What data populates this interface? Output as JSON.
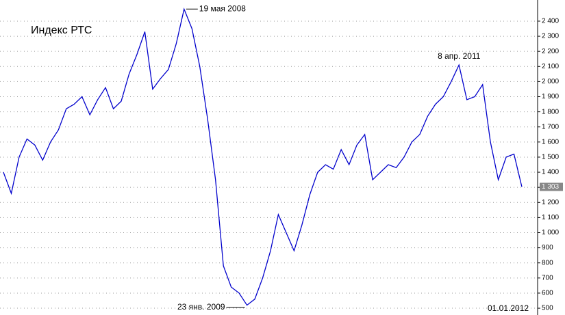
{
  "chart_data": {
    "type": "line",
    "title": "Индекс РТС",
    "series": [
      {
        "name": "РТС",
        "color": "#0000cc",
        "values": [
          1400,
          1260,
          1500,
          1620,
          1580,
          1480,
          1600,
          1680,
          1820,
          1850,
          1900,
          1780,
          1880,
          1960,
          1820,
          1870,
          2050,
          2180,
          2330,
          1950,
          2020,
          2080,
          2250,
          2480,
          2350,
          2100,
          1750,
          1350,
          780,
          640,
          600,
          520,
          560,
          700,
          880,
          1120,
          1000,
          880,
          1050,
          1250,
          1400,
          1450,
          1420,
          1550,
          1450,
          1580,
          1650,
          1350,
          1400,
          1450,
          1430,
          1500,
          1600,
          1650,
          1770,
          1850,
          1900,
          2000,
          2110,
          1880,
          1900,
          1980,
          1600,
          1350,
          1500,
          1520,
          1303
        ],
        "value_labels": [
          null,
          null,
          null,
          null,
          null,
          null,
          null,
          null,
          null,
          null,
          null,
          null,
          null,
          null,
          null,
          null,
          null,
          null,
          null,
          null,
          null,
          null,
          null,
          null,
          null,
          null,
          null,
          null,
          null,
          null,
          null,
          null,
          null,
          null,
          null,
          null,
          null,
          null,
          null,
          null,
          null,
          null,
          null,
          null,
          null,
          null,
          null,
          null,
          null,
          null,
          null,
          null,
          null,
          null,
          null,
          null,
          null,
          null,
          null,
          null,
          null,
          null,
          null,
          null,
          null,
          null,
          "1 303"
        ]
      }
    ],
    "annotations": [
      {
        "text": "19 мая 2008",
        "index": 23
      },
      {
        "text": "23 янв. 2009",
        "index": 31
      },
      {
        "text": "8 апр. 2011",
        "index": 58
      }
    ],
    "end_label": "01.01.2012",
    "ylim": [
      455,
      2540
    ],
    "yticks": [
      {
        "value": 500,
        "label": "500"
      },
      {
        "value": 600,
        "label": "600"
      },
      {
        "value": 700,
        "label": "700"
      },
      {
        "value": 800,
        "label": "800"
      },
      {
        "value": 900,
        "label": "900"
      },
      {
        "value": 1000,
        "label": "1 000"
      },
      {
        "value": 1100,
        "label": "1 100"
      },
      {
        "value": 1200,
        "label": "1 200"
      },
      {
        "value": 1300,
        "label": "1 300"
      },
      {
        "value": 1400,
        "label": "1 400"
      },
      {
        "value": 1500,
        "label": "1 500"
      },
      {
        "value": 1600,
        "label": "1 600"
      },
      {
        "value": 1700,
        "label": "1 700"
      },
      {
        "value": 1800,
        "label": "1 800"
      },
      {
        "value": 1900,
        "label": "1 900"
      },
      {
        "value": 2000,
        "label": "2 000"
      },
      {
        "value": 2100,
        "label": "2 100"
      },
      {
        "value": 2200,
        "label": "2 200"
      },
      {
        "value": 2300,
        "label": "2 300"
      },
      {
        "value": 2400,
        "label": "2 400"
      }
    ],
    "grid": true
  }
}
